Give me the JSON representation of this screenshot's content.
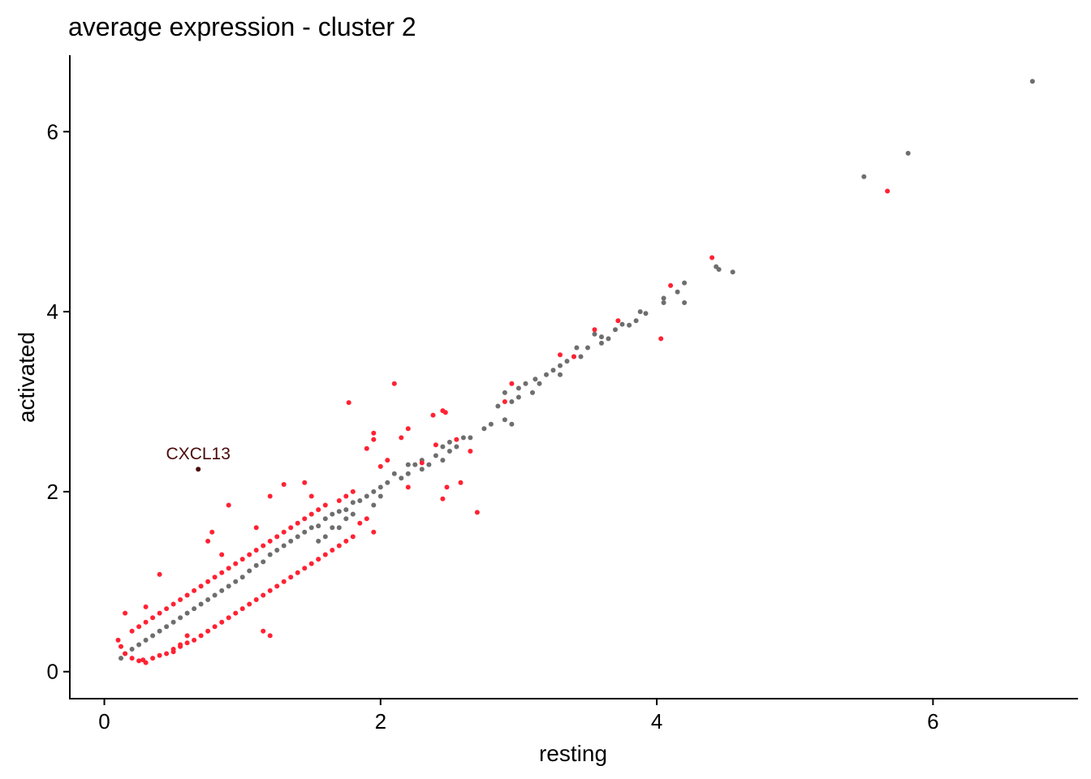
{
  "chart_data": {
    "type": "scatter",
    "title": "average expression - cluster 2",
    "xlabel": "resting",
    "ylabel": "activated",
    "xlim": [
      -0.25,
      7.05
    ],
    "ylim": [
      -0.3,
      6.85
    ],
    "xticks": [
      0,
      2,
      4,
      6
    ],
    "xtick_labels": [
      "0",
      "2",
      "4",
      "6"
    ],
    "yticks": [
      0,
      2,
      4,
      6
    ],
    "ytick_labels": [
      "0",
      "2",
      "4",
      "6"
    ],
    "grid": false,
    "colors": {
      "grey": "#6e6e6e",
      "red": "#ff2233",
      "highlight": "#4a0a0a"
    },
    "series": [
      {
        "color": "grey",
        "points": [
          [
            6.72,
            6.56
          ],
          [
            5.82,
            5.76
          ],
          [
            5.5,
            5.5
          ],
          [
            4.55,
            4.44
          ],
          [
            4.45,
            4.47
          ],
          [
            4.43,
            4.5
          ],
          [
            4.2,
            4.32
          ],
          [
            4.2,
            4.1
          ],
          [
            4.15,
            4.22
          ],
          [
            4.05,
            4.15
          ],
          [
            4.05,
            4.1
          ],
          [
            3.92,
            3.98
          ],
          [
            3.88,
            4.0
          ],
          [
            3.85,
            3.9
          ],
          [
            3.8,
            3.85
          ],
          [
            3.75,
            3.86
          ],
          [
            3.65,
            3.7
          ],
          [
            3.6,
            3.65
          ],
          [
            3.55,
            3.75
          ],
          [
            3.5,
            3.6
          ],
          [
            3.45,
            3.5
          ],
          [
            3.42,
            3.6
          ],
          [
            3.4,
            3.5
          ],
          [
            3.35,
            3.45
          ],
          [
            3.3,
            3.4
          ],
          [
            3.25,
            3.35
          ],
          [
            3.2,
            3.3
          ],
          [
            3.15,
            3.2
          ],
          [
            3.12,
            3.25
          ],
          [
            3.1,
            3.1
          ],
          [
            3.05,
            3.2
          ],
          [
            3.0,
            3.05
          ],
          [
            2.95,
            3.0
          ],
          [
            2.9,
            3.1
          ],
          [
            2.85,
            2.95
          ],
          [
            2.9,
            2.8
          ],
          [
            2.95,
            2.75
          ],
          [
            2.8,
            2.75
          ],
          [
            2.75,
            2.7
          ],
          [
            2.65,
            2.6
          ],
          [
            2.6,
            2.6
          ],
          [
            2.55,
            2.5
          ],
          [
            2.5,
            2.45
          ],
          [
            2.45,
            2.5
          ],
          [
            2.45,
            2.35
          ],
          [
            2.4,
            2.4
          ],
          [
            2.35,
            2.3
          ],
          [
            2.3,
            2.25
          ],
          [
            2.25,
            2.3
          ],
          [
            2.2,
            2.3
          ],
          [
            2.2,
            2.2
          ],
          [
            2.15,
            2.15
          ],
          [
            2.1,
            2.2
          ],
          [
            2.05,
            2.1
          ],
          [
            2.0,
            2.05
          ],
          [
            1.95,
            2.0
          ],
          [
            1.9,
            1.95
          ],
          [
            1.85,
            1.9
          ],
          [
            1.8,
            1.88
          ],
          [
            1.75,
            1.8
          ],
          [
            1.7,
            1.78
          ],
          [
            1.65,
            1.75
          ],
          [
            1.6,
            1.7
          ],
          [
            1.55,
            1.62
          ],
          [
            1.5,
            1.6
          ],
          [
            1.45,
            1.55
          ],
          [
            1.4,
            1.5
          ],
          [
            1.35,
            1.45
          ],
          [
            1.3,
            1.4
          ],
          [
            1.25,
            1.35
          ],
          [
            1.2,
            1.3
          ],
          [
            1.15,
            1.22
          ],
          [
            1.1,
            1.18
          ],
          [
            1.05,
            1.12
          ],
          [
            1.0,
            1.05
          ],
          [
            0.95,
            1.0
          ],
          [
            0.9,
            0.95
          ],
          [
            0.85,
            0.9
          ],
          [
            0.8,
            0.85
          ],
          [
            0.75,
            0.8
          ],
          [
            0.7,
            0.75
          ],
          [
            0.65,
            0.7
          ],
          [
            0.6,
            0.65
          ],
          [
            0.55,
            0.6
          ],
          [
            0.5,
            0.55
          ],
          [
            0.45,
            0.5
          ],
          [
            0.4,
            0.45
          ],
          [
            0.35,
            0.4
          ],
          [
            0.3,
            0.35
          ],
          [
            0.25,
            0.3
          ],
          [
            0.2,
            0.25
          ],
          [
            0.15,
            0.2
          ],
          [
            0.12,
            0.15
          ],
          [
            1.55,
            1.45
          ],
          [
            1.6,
            1.5
          ],
          [
            1.7,
            1.6
          ],
          [
            1.75,
            1.7
          ],
          [
            1.8,
            1.75
          ],
          [
            1.65,
            1.6
          ],
          [
            2.0,
            1.95
          ],
          [
            1.95,
            1.85
          ],
          [
            3.3,
            3.3
          ],
          [
            3.7,
            3.8
          ],
          [
            3.0,
            3.15
          ],
          [
            2.5,
            2.55
          ],
          [
            2.3,
            2.35
          ],
          [
            3.6,
            3.72
          ]
        ]
      },
      {
        "color": "red",
        "points": [
          [
            5.67,
            5.34
          ],
          [
            4.4,
            4.6
          ],
          [
            4.1,
            4.29
          ],
          [
            4.03,
            3.7
          ],
          [
            3.72,
            3.9
          ],
          [
            3.55,
            3.8
          ],
          [
            3.3,
            3.52
          ],
          [
            2.95,
            3.2
          ],
          [
            2.9,
            3.0
          ],
          [
            2.1,
            3.2
          ],
          [
            1.77,
            2.99
          ],
          [
            2.45,
            2.9
          ],
          [
            2.47,
            2.88
          ],
          [
            2.38,
            2.85
          ],
          [
            1.95,
            2.65
          ],
          [
            1.95,
            2.58
          ],
          [
            1.9,
            2.48
          ],
          [
            2.2,
            2.7
          ],
          [
            2.15,
            2.6
          ],
          [
            2.3,
            2.32
          ],
          [
            2.05,
            2.35
          ],
          [
            2.0,
            2.28
          ],
          [
            2.58,
            2.1
          ],
          [
            2.48,
            2.05
          ],
          [
            2.7,
            1.77
          ],
          [
            1.3,
            2.08
          ],
          [
            1.45,
            2.1
          ],
          [
            1.2,
            1.95
          ],
          [
            0.9,
            1.85
          ],
          [
            0.78,
            1.55
          ],
          [
            0.75,
            1.45
          ],
          [
            0.4,
            1.08
          ],
          [
            1.15,
            0.45
          ],
          [
            1.2,
            0.4
          ],
          [
            0.1,
            0.35
          ],
          [
            0.12,
            0.28
          ],
          [
            0.15,
            0.2
          ],
          [
            0.2,
            0.15
          ],
          [
            0.25,
            0.12
          ],
          [
            0.3,
            0.1
          ],
          [
            0.35,
            0.15
          ],
          [
            0.4,
            0.18
          ],
          [
            0.45,
            0.2
          ],
          [
            0.5,
            0.22
          ],
          [
            0.55,
            0.28
          ],
          [
            0.6,
            0.32
          ],
          [
            0.65,
            0.35
          ],
          [
            0.7,
            0.4
          ],
          [
            0.75,
            0.45
          ],
          [
            0.8,
            0.5
          ],
          [
            0.85,
            0.55
          ],
          [
            0.9,
            0.6
          ],
          [
            0.95,
            0.65
          ],
          [
            1.0,
            0.7
          ],
          [
            1.05,
            0.75
          ],
          [
            1.1,
            0.8
          ],
          [
            1.15,
            0.85
          ],
          [
            1.2,
            0.9
          ],
          [
            1.25,
            0.95
          ],
          [
            1.3,
            1.0
          ],
          [
            1.35,
            1.05
          ],
          [
            1.4,
            1.1
          ],
          [
            1.45,
            1.15
          ],
          [
            1.5,
            1.2
          ],
          [
            1.55,
            1.25
          ],
          [
            1.6,
            1.3
          ],
          [
            1.65,
            1.35
          ],
          [
            1.7,
            1.4
          ],
          [
            0.2,
            0.45
          ],
          [
            0.25,
            0.5
          ],
          [
            0.3,
            0.55
          ],
          [
            0.35,
            0.6
          ],
          [
            0.4,
            0.65
          ],
          [
            0.45,
            0.7
          ],
          [
            0.5,
            0.75
          ],
          [
            0.55,
            0.8
          ],
          [
            0.6,
            0.85
          ],
          [
            0.65,
            0.9
          ],
          [
            0.7,
            0.95
          ],
          [
            0.75,
            1.0
          ],
          [
            0.8,
            1.05
          ],
          [
            0.85,
            1.1
          ],
          [
            0.9,
            1.15
          ],
          [
            0.95,
            1.2
          ],
          [
            1.0,
            1.25
          ],
          [
            1.05,
            1.3
          ],
          [
            1.1,
            1.35
          ],
          [
            1.15,
            1.4
          ],
          [
            1.2,
            1.45
          ],
          [
            1.25,
            1.5
          ],
          [
            1.3,
            1.55
          ],
          [
            1.35,
            1.6
          ],
          [
            1.4,
            1.65
          ],
          [
            1.45,
            1.7
          ],
          [
            1.5,
            1.75
          ],
          [
            1.55,
            1.8
          ],
          [
            1.6,
            1.85
          ],
          [
            1.7,
            1.9
          ],
          [
            1.75,
            1.95
          ],
          [
            1.8,
            2.0
          ],
          [
            1.85,
            1.65
          ],
          [
            1.9,
            1.7
          ],
          [
            1.95,
            1.55
          ],
          [
            1.8,
            1.5
          ],
          [
            1.75,
            1.45
          ],
          [
            0.15,
            0.65
          ],
          [
            0.3,
            0.72
          ],
          [
            0.55,
            0.3
          ],
          [
            0.5,
            0.25
          ],
          [
            0.28,
            0.13
          ],
          [
            0.6,
            0.4
          ],
          [
            2.65,
            2.45
          ],
          [
            2.55,
            2.58
          ],
          [
            2.4,
            2.52
          ],
          [
            2.45,
            1.92
          ],
          [
            3.4,
            3.5
          ],
          [
            2.2,
            2.05
          ],
          [
            1.5,
            1.95
          ],
          [
            1.1,
            1.6
          ],
          [
            0.85,
            1.3
          ]
        ]
      },
      {
        "color": "highlight",
        "points": [
          [
            0.68,
            2.25
          ]
        ],
        "labels": [
          "CXCL13"
        ]
      }
    ]
  }
}
